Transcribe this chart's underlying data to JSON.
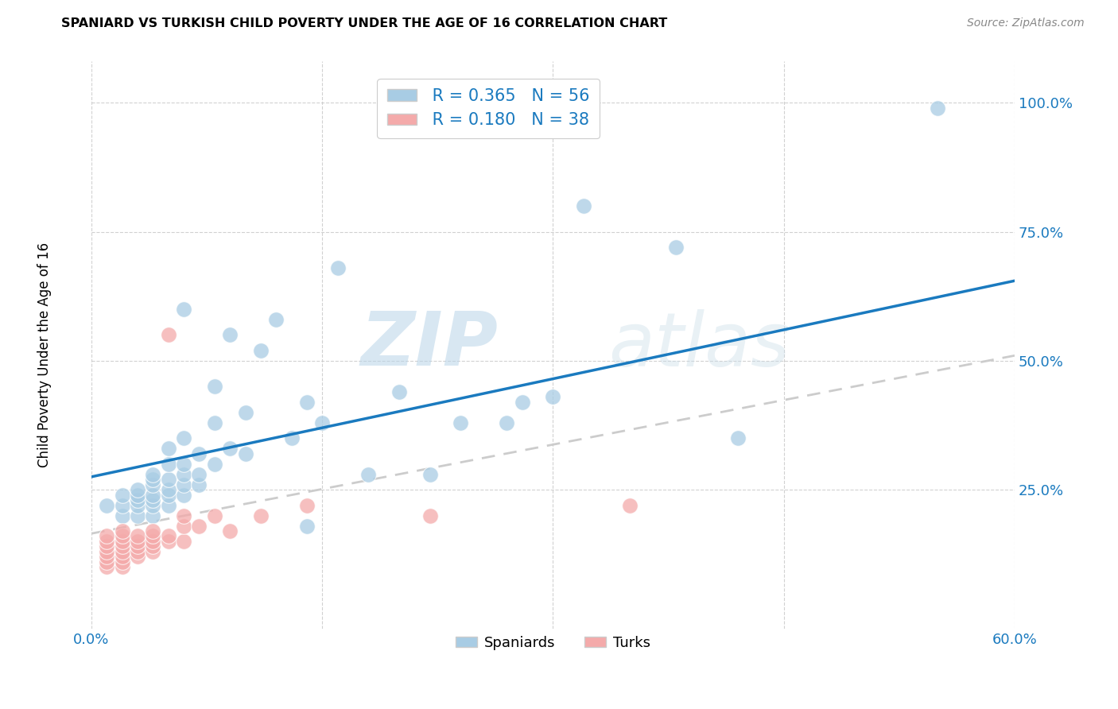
{
  "title": "SPANIARD VS TURKISH CHILD POVERTY UNDER THE AGE OF 16 CORRELATION CHART",
  "source": "Source: ZipAtlas.com",
  "ylabel": "Child Poverty Under the Age of 16",
  "xlim": [
    0.0,
    0.6
  ],
  "ylim": [
    -0.02,
    1.08
  ],
  "xticks": [
    0.0,
    0.15,
    0.3,
    0.45,
    0.6
  ],
  "xtick_labels": [
    "0.0%",
    "",
    "",
    "",
    "60.0%"
  ],
  "ytick_labels": [
    "25.0%",
    "50.0%",
    "75.0%",
    "100.0%"
  ],
  "yticks": [
    0.25,
    0.5,
    0.75,
    1.0
  ],
  "blue_color": "#a8cce4",
  "pink_color": "#f4aaaa",
  "blue_line_color": "#1a7abf",
  "pink_line_color": "#e05080",
  "legend_R_blue": "0.365",
  "legend_N_blue": "56",
  "legend_R_pink": "0.180",
  "legend_N_pink": "38",
  "watermark_zip": "ZIP",
  "watermark_atlas": "atlas",
  "blue_scatter_x": [
    0.01,
    0.02,
    0.02,
    0.02,
    0.03,
    0.03,
    0.03,
    0.03,
    0.03,
    0.04,
    0.04,
    0.04,
    0.04,
    0.04,
    0.04,
    0.04,
    0.05,
    0.05,
    0.05,
    0.05,
    0.05,
    0.05,
    0.06,
    0.06,
    0.06,
    0.06,
    0.06,
    0.06,
    0.07,
    0.07,
    0.07,
    0.08,
    0.08,
    0.08,
    0.09,
    0.09,
    0.1,
    0.1,
    0.11,
    0.12,
    0.13,
    0.14,
    0.14,
    0.15,
    0.16,
    0.18,
    0.2,
    0.22,
    0.24,
    0.27,
    0.28,
    0.3,
    0.32,
    0.38,
    0.42,
    0.55
  ],
  "blue_scatter_y": [
    0.22,
    0.2,
    0.22,
    0.24,
    0.2,
    0.22,
    0.23,
    0.24,
    0.25,
    0.2,
    0.22,
    0.23,
    0.24,
    0.26,
    0.27,
    0.28,
    0.22,
    0.24,
    0.25,
    0.27,
    0.3,
    0.33,
    0.24,
    0.26,
    0.28,
    0.3,
    0.35,
    0.6,
    0.26,
    0.28,
    0.32,
    0.3,
    0.38,
    0.45,
    0.33,
    0.55,
    0.32,
    0.4,
    0.52,
    0.58,
    0.35,
    0.42,
    0.18,
    0.38,
    0.68,
    0.28,
    0.44,
    0.28,
    0.38,
    0.38,
    0.42,
    0.43,
    0.8,
    0.72,
    0.35,
    0.99
  ],
  "pink_scatter_x": [
    0.01,
    0.01,
    0.01,
    0.01,
    0.01,
    0.01,
    0.01,
    0.02,
    0.02,
    0.02,
    0.02,
    0.02,
    0.02,
    0.02,
    0.02,
    0.03,
    0.03,
    0.03,
    0.03,
    0.03,
    0.04,
    0.04,
    0.04,
    0.04,
    0.04,
    0.05,
    0.05,
    0.05,
    0.06,
    0.06,
    0.06,
    0.07,
    0.08,
    0.09,
    0.11,
    0.14,
    0.22,
    0.35
  ],
  "pink_scatter_y": [
    0.1,
    0.11,
    0.12,
    0.13,
    0.14,
    0.15,
    0.16,
    0.1,
    0.11,
    0.12,
    0.13,
    0.14,
    0.15,
    0.16,
    0.17,
    0.12,
    0.13,
    0.14,
    0.15,
    0.16,
    0.13,
    0.14,
    0.15,
    0.16,
    0.17,
    0.15,
    0.16,
    0.55,
    0.15,
    0.18,
    0.2,
    0.18,
    0.2,
    0.17,
    0.2,
    0.22,
    0.2,
    0.22
  ],
  "blue_line_x0": 0.0,
  "blue_line_y0": 0.275,
  "blue_line_x1": 0.6,
  "blue_line_y1": 0.655,
  "pink_line_x0": 0.0,
  "pink_line_y0": 0.165,
  "pink_line_x1": 0.6,
  "pink_line_y1": 0.51
}
